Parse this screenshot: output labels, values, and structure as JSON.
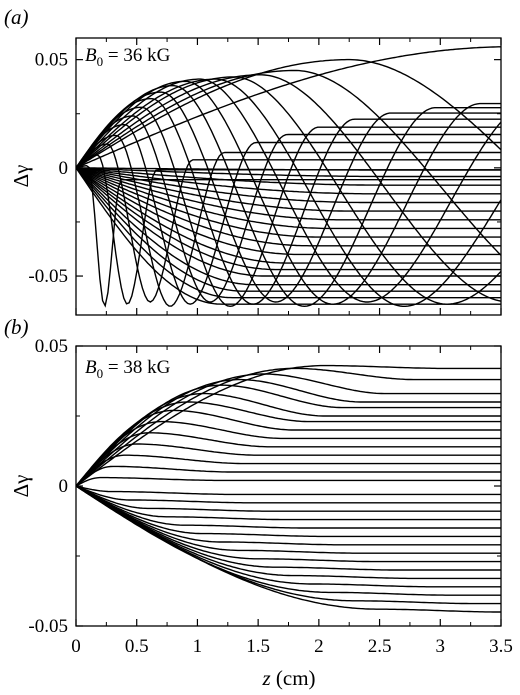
{
  "chart_data": [
    {
      "type": "line",
      "panel_label": "(a)",
      "annotation": "B0 = 36 kG",
      "annotation_base": "B",
      "annotation_sub": "0",
      "annotation_rest": " = 36 kG",
      "ylabel": "Δγ",
      "xlabel": "",
      "xlim": [
        0,
        3.5
      ],
      "ylim": [
        -0.068,
        0.06
      ],
      "yticks": [
        0.05,
        0,
        -0.05
      ],
      "ytick_labels": [
        "0.05",
        "0",
        "-0.05"
      ],
      "xticks": [
        0,
        0.5,
        1,
        1.5,
        2,
        2.5,
        3,
        3.5
      ],
      "xtick_labels": [],
      "grid": false,
      "series_params": {
        "peaks": [
          [
            0.1,
            0.001
          ],
          [
            0.18,
            0.006
          ],
          [
            0.26,
            0.011
          ],
          [
            0.33,
            0.015
          ],
          [
            0.4,
            0.02
          ],
          [
            0.47,
            0.024
          ],
          [
            0.54,
            0.028
          ],
          [
            0.62,
            0.032
          ],
          [
            0.7,
            0.035
          ],
          [
            0.8,
            0.038
          ],
          [
            0.9,
            0.04
          ],
          [
            1.02,
            0.041
          ],
          [
            1.15,
            0.041
          ],
          [
            1.3,
            0.042
          ],
          [
            1.52,
            0.043
          ],
          [
            1.8,
            0.045
          ],
          [
            2.25,
            0.05
          ],
          [
            3.6,
            0.056
          ]
        ],
        "negative_finals": [
          -0.063,
          -0.06,
          -0.057,
          -0.054,
          -0.05,
          -0.047,
          -0.044,
          -0.04,
          -0.036,
          -0.032,
          -0.028,
          -0.024,
          -0.02,
          -0.016,
          -0.012,
          -0.008,
          -0.004,
          -0.001
        ]
      }
    },
    {
      "type": "line",
      "panel_label": "(b)",
      "annotation": "B0 = 38 kG",
      "annotation_base": "B",
      "annotation_sub": "0",
      "annotation_rest": " = 38 kG",
      "ylabel": "Δγ",
      "xlabel": "z (cm)",
      "xlabel_var": "z",
      "xlabel_unit": " (cm)",
      "xlim": [
        0,
        3.5
      ],
      "ylim": [
        -0.05,
        0.05
      ],
      "yticks": [
        0.05,
        0,
        -0.05
      ],
      "ytick_labels": [
        "0.05",
        "0",
        "-0.05"
      ],
      "xticks": [
        0,
        0.5,
        1,
        1.5,
        2,
        2.5,
        3,
        3.5
      ],
      "xtick_labels": [
        "0",
        "0.5",
        "1",
        "1.5",
        "2",
        "2.5",
        "3",
        "3.5"
      ],
      "grid": false,
      "series_params": {
        "positive": [
          [
            0.2,
            0.003,
            0.002
          ],
          [
            0.3,
            0.007,
            0.005
          ],
          [
            0.4,
            0.011,
            0.008
          ],
          [
            0.5,
            0.015,
            0.011
          ],
          [
            0.6,
            0.019,
            0.014
          ],
          [
            0.7,
            0.023,
            0.017
          ],
          [
            0.8,
            0.027,
            0.02
          ],
          [
            0.92,
            0.03,
            0.023
          ],
          [
            1.05,
            0.033,
            0.025
          ],
          [
            1.2,
            0.036,
            0.028
          ],
          [
            1.35,
            0.038,
            0.03
          ],
          [
            1.55,
            0.04,
            0.033
          ],
          [
            1.8,
            0.042,
            0.038
          ],
          [
            2.05,
            0.043,
            0.042
          ]
        ],
        "negative": [
          [
            0.3,
            -0.002,
            -0.003
          ],
          [
            0.45,
            -0.005,
            -0.006
          ],
          [
            0.6,
            -0.008,
            -0.009
          ],
          [
            0.75,
            -0.011,
            -0.012
          ],
          [
            0.9,
            -0.014,
            -0.015
          ],
          [
            1.05,
            -0.017,
            -0.018
          ],
          [
            1.2,
            -0.02,
            -0.021
          ],
          [
            1.35,
            -0.023,
            -0.024
          ],
          [
            1.5,
            -0.026,
            -0.027
          ],
          [
            1.65,
            -0.029,
            -0.03
          ],
          [
            1.8,
            -0.032,
            -0.033
          ],
          [
            1.95,
            -0.035,
            -0.036
          ],
          [
            2.1,
            -0.038,
            -0.039
          ],
          [
            2.3,
            -0.041,
            -0.042
          ],
          [
            2.5,
            -0.044,
            -0.045
          ]
        ]
      }
    }
  ]
}
